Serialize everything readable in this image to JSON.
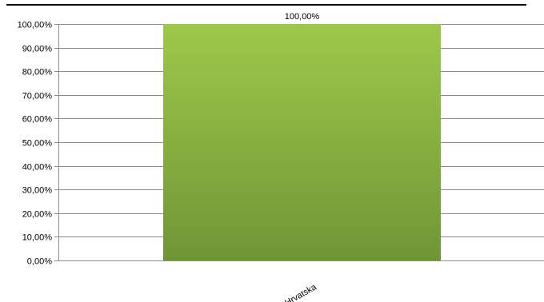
{
  "chart_data": {
    "type": "bar",
    "categories": [
      "Hrvatska"
    ],
    "values": [
      100
    ],
    "data_labels": [
      "100,00%"
    ],
    "title": "",
    "xlabel": "",
    "ylabel": "",
    "ylim": [
      0,
      100
    ],
    "y_ticks": [
      {
        "value": 0,
        "label": "0,00%"
      },
      {
        "value": 10,
        "label": "10,00%"
      },
      {
        "value": 20,
        "label": "20,00%"
      },
      {
        "value": 30,
        "label": "30,00%"
      },
      {
        "value": 40,
        "label": "40,00%"
      },
      {
        "value": 50,
        "label": "50,00%"
      },
      {
        "value": 60,
        "label": "60,00%"
      },
      {
        "value": 70,
        "label": "70,00%"
      },
      {
        "value": 80,
        "label": "80,00%"
      },
      {
        "value": 90,
        "label": "90,00%"
      },
      {
        "value": 100,
        "label": "100,00%"
      }
    ],
    "grid": true,
    "legend": "none",
    "colors": {
      "bar_top": "#9dc84a",
      "bar_bottom": "#6f9636",
      "gridline": "#8c8c8c",
      "axis": "#8c8c8c",
      "top_rule": "#000000"
    }
  }
}
